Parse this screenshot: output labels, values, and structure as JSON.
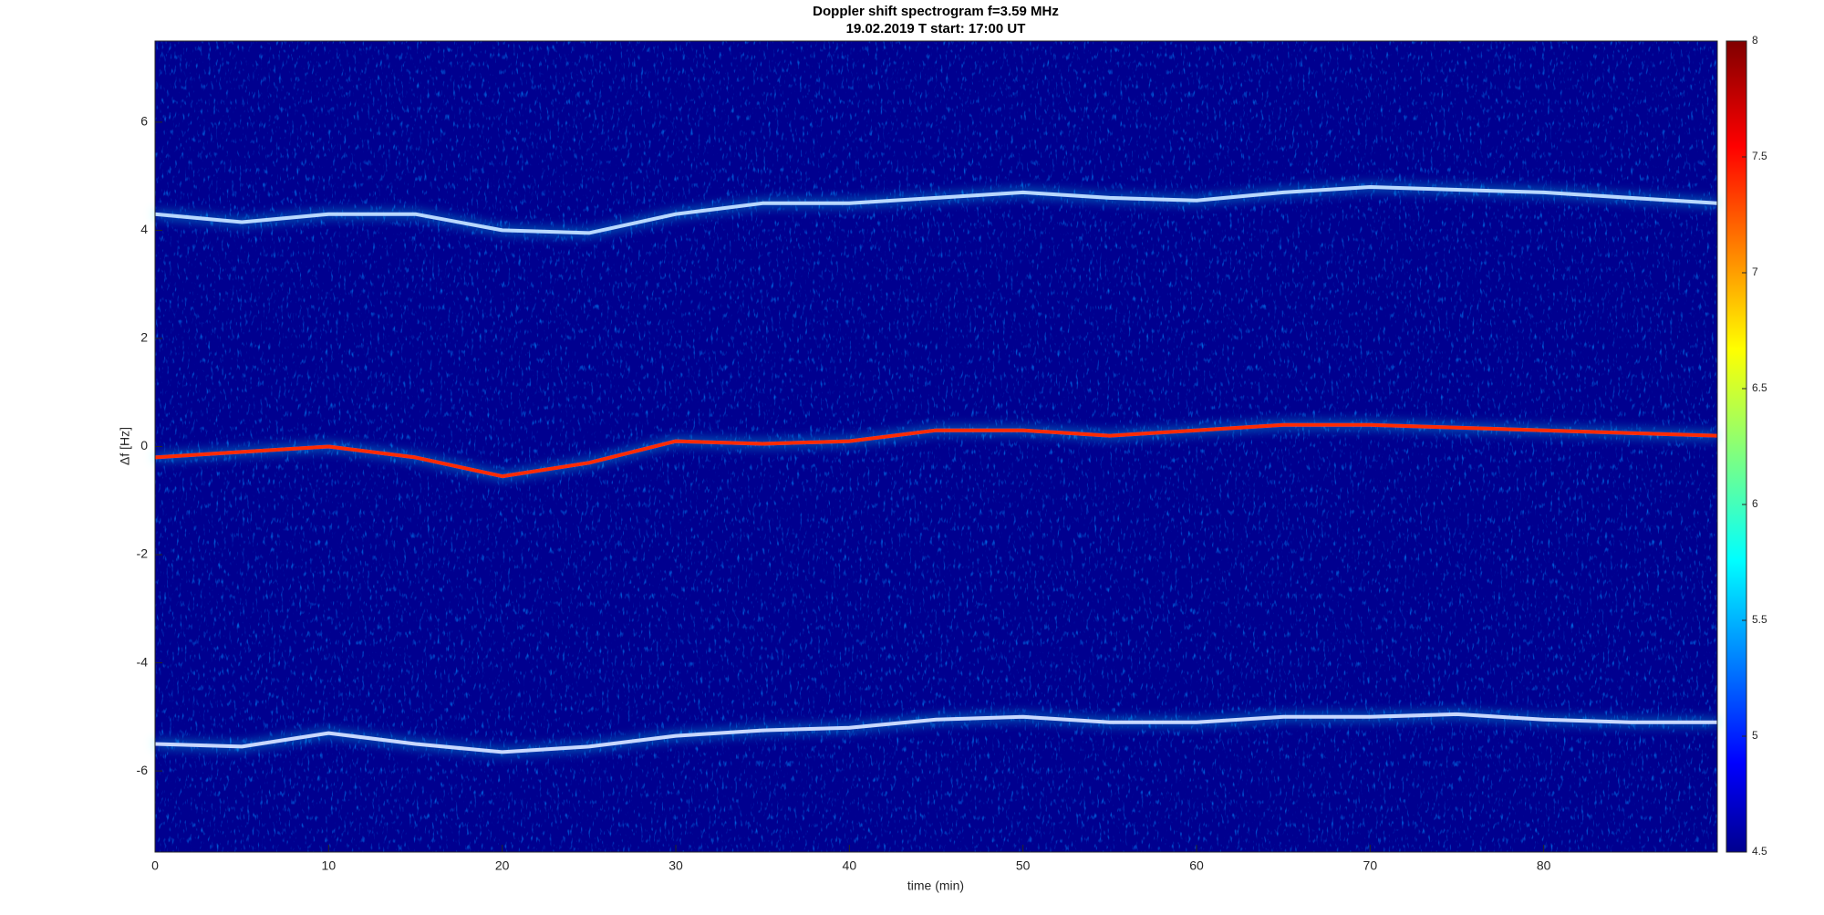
{
  "chart_data": {
    "type": "spectrogram",
    "title": "Doppler shift spectrogram f=3.59 MHz",
    "subtitle": "19.02.2019   T start: 17:00 UT",
    "x_label": "time (min)",
    "y_label": "Δf [Hz]",
    "xlim": [
      0,
      90
    ],
    "xticks": [
      0,
      10,
      20,
      30,
      40,
      50,
      60,
      70,
      80
    ],
    "ylim": [
      -7.5,
      7.5
    ],
    "yticks": [
      -6,
      -4,
      -2,
      0,
      2,
      4,
      6
    ],
    "colormap": "jet",
    "clim": [
      4.5,
      8
    ],
    "cticks": [
      4.5,
      5,
      5.5,
      6,
      6.5,
      7,
      7.5,
      8
    ],
    "x": [
      0,
      5,
      10,
      15,
      20,
      25,
      30,
      35,
      40,
      45,
      50,
      55,
      60,
      65,
      70,
      75,
      80,
      85,
      90
    ],
    "series": [
      {
        "color": "#b8d8ff",
        "values": [
          4.3,
          4.15,
          4.3,
          4.3,
          4.0,
          3.95,
          4.3,
          4.5,
          4.5,
          4.6,
          4.7,
          4.6,
          4.55,
          4.7,
          4.8,
          4.75,
          4.7,
          4.6,
          4.5
        ]
      },
      {
        "color": "#ff2a00",
        "values": [
          -0.2,
          -0.1,
          0.0,
          -0.2,
          -0.55,
          -0.3,
          0.1,
          0.05,
          0.1,
          0.3,
          0.3,
          0.2,
          0.3,
          0.4,
          0.4,
          0.35,
          0.3,
          0.25,
          0.2
        ]
      },
      {
        "color": "#c8d8ff",
        "values": [
          -5.5,
          -5.55,
          -5.3,
          -5.5,
          -5.65,
          -5.55,
          -5.35,
          -5.25,
          -5.2,
          -5.05,
          -5.0,
          -5.1,
          -5.1,
          -5.0,
          -5.0,
          -4.95,
          -5.05,
          -5.1,
          -5.1
        ]
      }
    ]
  }
}
